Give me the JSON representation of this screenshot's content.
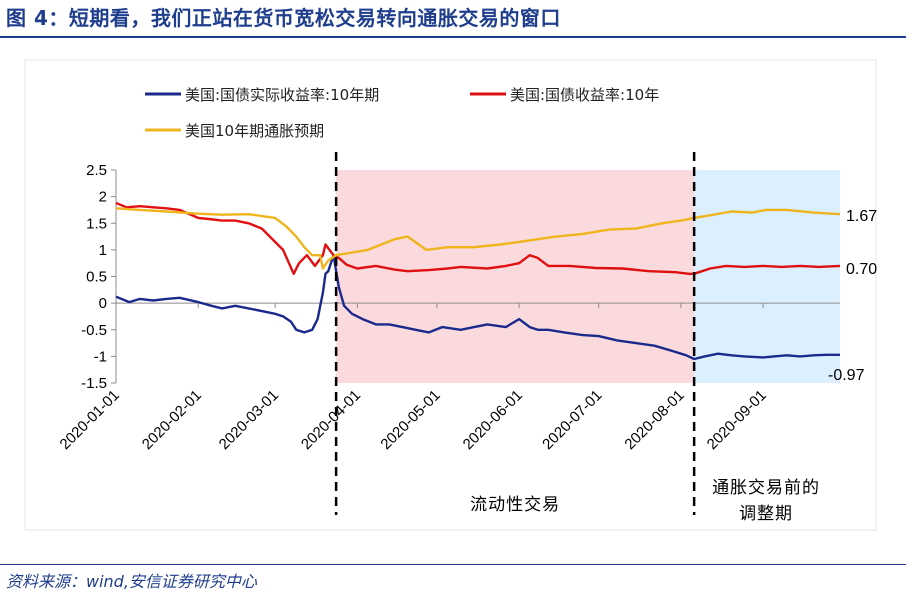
{
  "header": {
    "title": "图 4：短期看，我们正站在货币宽松交易转向通胀交易的窗口"
  },
  "footer": {
    "source": "资料来源：wind,安信证券研究中心"
  },
  "colors": {
    "real": "#1a2a8c",
    "nominal": "#e01010",
    "inflation": "#f0b41c",
    "liquidity_band": "#fadadd",
    "inflation_band": "#dcefff",
    "title": "#1f3e8e"
  },
  "chart_data": {
    "type": "line",
    "title": "",
    "xlabel": "",
    "ylabel": "",
    "ylim": [
      -1.5,
      2.5
    ],
    "yticks": [
      "2.5",
      "2",
      "1.5",
      "1",
      "0.5",
      "0",
      "-0.5",
      "-1",
      "-1.5"
    ],
    "ytick_values": [
      2.5,
      2,
      1.5,
      1,
      0.5,
      0,
      -0.5,
      -1,
      -1.5
    ],
    "xlim": [
      "2020-01-01",
      "2020-09-30"
    ],
    "xticks": [
      "2020-01-01",
      "2020-02-01",
      "2020-03-01",
      "2020-04-01",
      "2020-05-01",
      "2020-06-01",
      "2020-07-01",
      "2020-08-01",
      "2020-09-01"
    ],
    "grid": false,
    "legend": {
      "placement": "top-left",
      "entries": [
        "美国:国债实际收益率:10年期",
        "美国:国债收益率:10年",
        "美国10年期通胀预期"
      ]
    },
    "regions": [
      {
        "label": "流动性交易",
        "start": "2020-03-24",
        "end": "2020-08-06",
        "color": "#fadadd"
      },
      {
        "label_lines": [
          "通胀交易前的",
          "调整期"
        ],
        "start": "2020-08-06",
        "end": "2020-09-30",
        "color": "#dcefff"
      }
    ],
    "end_labels": [
      "1.67",
      "0.70",
      "-0.97"
    ],
    "series": [
      {
        "name": "美国:国债实际收益率:10年期",
        "color": "#1a2a8c",
        "x": [
          "2020-01-01",
          "2020-01-06",
          "2020-01-10",
          "2020-01-15",
          "2020-01-20",
          "2020-01-25",
          "2020-02-01",
          "2020-02-06",
          "2020-02-10",
          "2020-02-15",
          "2020-02-20",
          "2020-02-25",
          "2020-03-01",
          "2020-03-04",
          "2020-03-07",
          "2020-03-09",
          "2020-03-12",
          "2020-03-15",
          "2020-03-17",
          "2020-03-19",
          "2020-03-20",
          "2020-03-21",
          "2020-03-23",
          "2020-03-25",
          "2020-03-27",
          "2020-03-30",
          "2020-04-03",
          "2020-04-08",
          "2020-04-13",
          "2020-04-18",
          "2020-04-23",
          "2020-04-28",
          "2020-05-03",
          "2020-05-10",
          "2020-05-15",
          "2020-05-20",
          "2020-05-27",
          "2020-06-01",
          "2020-06-05",
          "2020-06-08",
          "2020-06-12",
          "2020-06-18",
          "2020-06-25",
          "2020-07-01",
          "2020-07-08",
          "2020-07-15",
          "2020-07-22",
          "2020-07-29",
          "2020-08-03",
          "2020-08-06",
          "2020-08-10",
          "2020-08-15",
          "2020-08-20",
          "2020-08-25",
          "2020-09-01",
          "2020-09-05",
          "2020-09-10",
          "2020-09-15",
          "2020-09-20",
          "2020-09-25",
          "2020-09-30"
        ],
        "y": [
          0.12,
          0.02,
          0.08,
          0.05,
          0.08,
          0.1,
          0.02,
          -0.05,
          -0.1,
          -0.05,
          -0.1,
          -0.15,
          -0.2,
          -0.25,
          -0.35,
          -0.5,
          -0.55,
          -0.5,
          -0.3,
          0.2,
          0.55,
          0.6,
          0.9,
          0.3,
          -0.05,
          -0.2,
          -0.3,
          -0.4,
          -0.4,
          -0.45,
          -0.5,
          -0.55,
          -0.45,
          -0.5,
          -0.45,
          -0.4,
          -0.45,
          -0.3,
          -0.45,
          -0.5,
          -0.5,
          -0.55,
          -0.6,
          -0.62,
          -0.7,
          -0.75,
          -0.8,
          -0.9,
          -0.98,
          -1.05,
          -1.0,
          -0.95,
          -0.98,
          -1.0,
          -1.02,
          -1.0,
          -0.98,
          -1.0,
          -0.98,
          -0.97,
          -0.97
        ]
      },
      {
        "name": "美国:国债收益率:10年",
        "color": "#e01010",
        "x": [
          "2020-01-01",
          "2020-01-05",
          "2020-01-10",
          "2020-01-15",
          "2020-01-20",
          "2020-01-25",
          "2020-02-01",
          "2020-02-05",
          "2020-02-10",
          "2020-02-15",
          "2020-02-20",
          "2020-02-25",
          "2020-03-01",
          "2020-03-04",
          "2020-03-08",
          "2020-03-10",
          "2020-03-13",
          "2020-03-16",
          "2020-03-19",
          "2020-03-20",
          "2020-03-23",
          "2020-03-25",
          "2020-03-28",
          "2020-04-01",
          "2020-04-08",
          "2020-04-15",
          "2020-04-20",
          "2020-04-28",
          "2020-05-05",
          "2020-05-10",
          "2020-05-20",
          "2020-05-27",
          "2020-06-01",
          "2020-06-05",
          "2020-06-08",
          "2020-06-12",
          "2020-06-20",
          "2020-06-30",
          "2020-07-10",
          "2020-07-20",
          "2020-07-30",
          "2020-08-04",
          "2020-08-06",
          "2020-08-12",
          "2020-08-18",
          "2020-08-25",
          "2020-09-01",
          "2020-09-08",
          "2020-09-15",
          "2020-09-22",
          "2020-09-30"
        ],
        "y": [
          1.88,
          1.8,
          1.82,
          1.8,
          1.78,
          1.75,
          1.6,
          1.58,
          1.55,
          1.55,
          1.5,
          1.4,
          1.15,
          1.0,
          0.55,
          0.75,
          0.9,
          0.7,
          0.9,
          1.1,
          0.9,
          0.85,
          0.72,
          0.65,
          0.7,
          0.63,
          0.6,
          0.62,
          0.65,
          0.68,
          0.65,
          0.7,
          0.75,
          0.9,
          0.85,
          0.7,
          0.7,
          0.66,
          0.65,
          0.6,
          0.58,
          0.55,
          0.55,
          0.65,
          0.7,
          0.68,
          0.7,
          0.68,
          0.7,
          0.68,
          0.7
        ]
      },
      {
        "name": "美国10年期通胀预期",
        "color": "#f0b41c",
        "x": [
          "2020-01-01",
          "2020-01-10",
          "2020-01-20",
          "2020-02-01",
          "2020-02-10",
          "2020-02-20",
          "2020-03-01",
          "2020-03-05",
          "2020-03-09",
          "2020-03-12",
          "2020-03-15",
          "2020-03-18",
          "2020-03-19",
          "2020-03-21",
          "2020-03-24",
          "2020-03-30",
          "2020-04-05",
          "2020-04-10",
          "2020-04-15",
          "2020-04-20",
          "2020-04-27",
          "2020-05-05",
          "2020-05-15",
          "2020-05-25",
          "2020-06-01",
          "2020-06-08",
          "2020-06-15",
          "2020-06-25",
          "2020-07-05",
          "2020-07-15",
          "2020-07-25",
          "2020-08-01",
          "2020-08-06",
          "2020-08-12",
          "2020-08-20",
          "2020-08-28",
          "2020-09-02",
          "2020-09-10",
          "2020-09-20",
          "2020-09-30"
        ],
        "y": [
          1.78,
          1.75,
          1.72,
          1.68,
          1.66,
          1.67,
          1.6,
          1.45,
          1.25,
          1.05,
          0.9,
          0.9,
          0.65,
          0.8,
          0.9,
          0.95,
          1.0,
          1.1,
          1.2,
          1.25,
          1.0,
          1.05,
          1.05,
          1.1,
          1.15,
          1.2,
          1.25,
          1.3,
          1.38,
          1.4,
          1.5,
          1.55,
          1.6,
          1.65,
          1.72,
          1.7,
          1.75,
          1.75,
          1.7,
          1.67
        ]
      }
    ]
  }
}
